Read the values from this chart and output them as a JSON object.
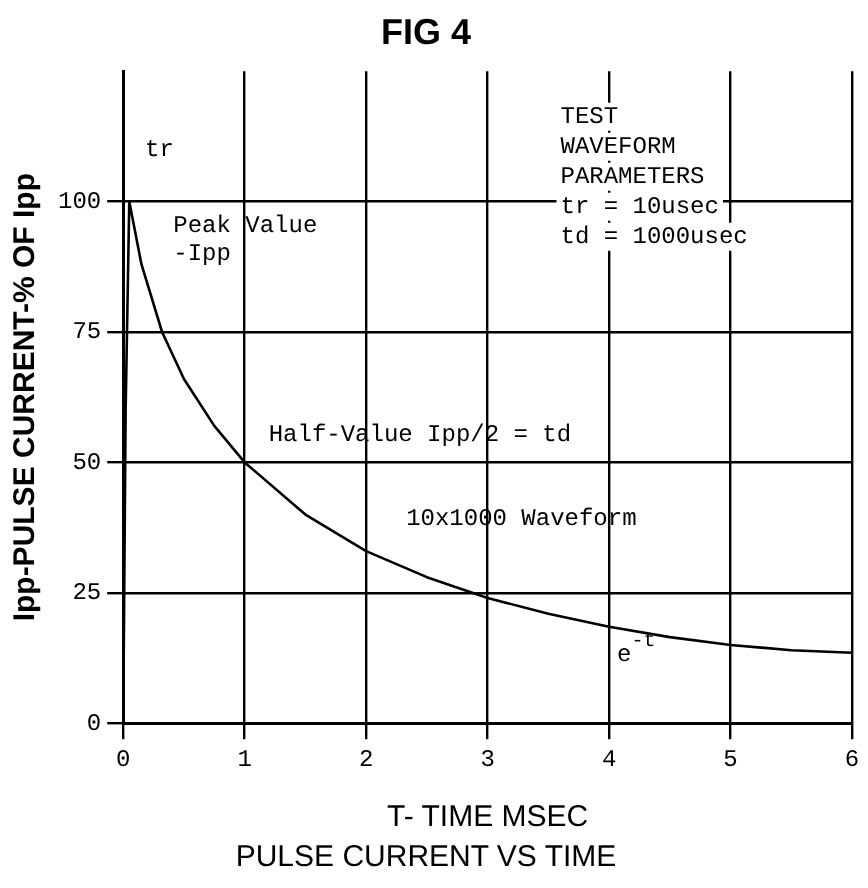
{
  "chart_data": {
    "type": "line",
    "title": "FIG 4",
    "subtitle": "PULSE CURRENT VS TIME",
    "xlabel": "T- TIME MSEC",
    "ylabel": "Ipp-PULSE CURRENT-% OF Ipp",
    "x": [
      0,
      0.02,
      0.05,
      0.15,
      0.32,
      0.5,
      0.75,
      1,
      1.5,
      2,
      2.5,
      3,
      3.5,
      4,
      4.5,
      5,
      5.5,
      6
    ],
    "series": [
      {
        "color": "#000000",
        "values": [
          0,
          60,
          100,
          88,
          75,
          66,
          57,
          50,
          40,
          33,
          28,
          24,
          21,
          18.5,
          16.5,
          15,
          14,
          13.5
        ]
      }
    ],
    "xlim": [
      0,
      6
    ],
    "ylim": [
      0,
      125
    ],
    "xticks": [
      0,
      1,
      2,
      3,
      4,
      5,
      6
    ],
    "yticks": [
      0,
      25,
      50,
      75,
      100
    ],
    "grid": true,
    "legend": false,
    "marker": "none",
    "line_style": "solid",
    "annotations": [
      "tr",
      {
        "text": "Peak Value\n-Ipp",
        "x": 0.05,
        "y": 100
      },
      {
        "text": "Half-Value Ipp/2 = td",
        "x": 1,
        "y": 50
      },
      {
        "text": "10x1000 Waveform",
        "x": 2,
        "y": 33
      },
      {
        "text": "e$^{-t}$",
        "x": 4,
        "y": 18.5
      },
      "TEST\nWAVEFORM\nPARAMETERS\ntr = 10usec\ntd = 1000usec"
    ]
  }
}
